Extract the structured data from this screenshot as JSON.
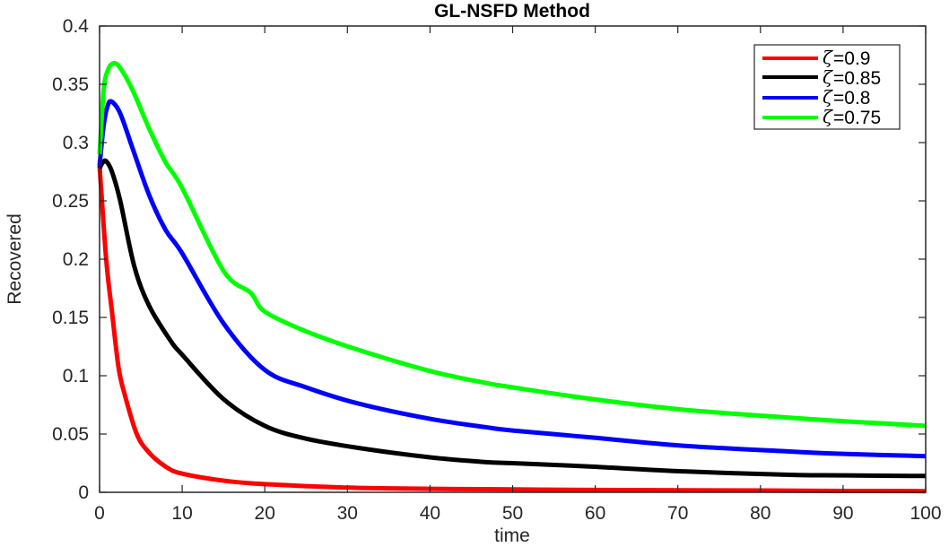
{
  "chart_data": {
    "type": "line",
    "title": "GL-NSFD Method",
    "xlabel": "time",
    "ylabel": "Recovered",
    "xlim": [
      0,
      100
    ],
    "ylim": [
      0,
      0.4
    ],
    "xticks": [
      0,
      10,
      20,
      30,
      40,
      50,
      60,
      70,
      80,
      90,
      100
    ],
    "xtick_labels": [
      "0",
      "10",
      "20",
      "30",
      "40",
      "50",
      "60",
      "70",
      "80",
      "90",
      "100"
    ],
    "yticks": [
      0,
      0.05,
      0.1,
      0.15,
      0.2,
      0.25,
      0.3,
      0.35,
      0.4
    ],
    "ytick_labels": [
      "0",
      "0.05",
      "0.1",
      "0.15",
      "0.2",
      "0.25",
      "0.3",
      "0.35",
      "0.4"
    ],
    "grid": false,
    "legend_position": "upper right",
    "series": [
      {
        "name": "ζ=0.9",
        "symbol": "ζ",
        "value_label": "=0.9",
        "color": "#ff0000",
        "x": [
          0,
          0.8,
          1.5,
          2.3,
          3,
          4.5,
          6,
          8,
          10,
          15,
          20,
          30,
          40,
          50,
          60,
          70,
          80,
          90,
          100
        ],
        "y": [
          0.28,
          0.2,
          0.155,
          0.107,
          0.085,
          0.05,
          0.034,
          0.022,
          0.016,
          0.01,
          0.007,
          0.004,
          0.003,
          0.0025,
          0.002,
          0.0017,
          0.0015,
          0.0012,
          0.001
        ]
      },
      {
        "name": "ζ=0.85",
        "symbol": "ζ",
        "value_label": "=0.85",
        "color": "#000000",
        "x": [
          0,
          0.4,
          0.8,
          1.5,
          2.5,
          4.2,
          6,
          8.6,
          10,
          15,
          20,
          25,
          31.4,
          40,
          46.6,
          50,
          59.6,
          70.5,
          83.5,
          90,
          100
        ],
        "y": [
          0.278,
          0.283,
          0.284,
          0.275,
          0.25,
          0.194,
          0.16,
          0.13,
          0.118,
          0.08,
          0.057,
          0.046,
          0.038,
          0.03,
          0.026,
          0.025,
          0.022,
          0.018,
          0.015,
          0.0145,
          0.014
        ]
      },
      {
        "name": "ζ=0.8",
        "symbol": "ζ",
        "value_label": "=0.8",
        "color": "#0000ff",
        "x": [
          0,
          0.5,
          1,
          1.5,
          2.5,
          4,
          6,
          8,
          10,
          15,
          20,
          25,
          31.4,
          40,
          46.6,
          50,
          59.6,
          70.5,
          83.5,
          90,
          100
        ],
        "y": [
          0.28,
          0.315,
          0.332,
          0.335,
          0.325,
          0.295,
          0.255,
          0.225,
          0.205,
          0.145,
          0.105,
          0.09,
          0.076,
          0.063,
          0.056,
          0.053,
          0.047,
          0.04,
          0.035,
          0.033,
          0.031
        ]
      },
      {
        "name": "ζ=0.75",
        "symbol": "ζ",
        "value_label": "=0.75",
        "color": "#00ff00",
        "x": [
          0,
          0.5,
          1,
          1.7,
          2.5,
          4,
          6,
          8,
          10,
          15,
          18.3,
          20,
          25,
          31.4,
          40,
          46.6,
          50,
          59.6,
          70.5,
          83.5,
          90,
          100
        ],
        "y": [
          0.29,
          0.345,
          0.362,
          0.368,
          0.364,
          0.345,
          0.312,
          0.283,
          0.261,
          0.19,
          0.171,
          0.155,
          0.138,
          0.122,
          0.104,
          0.094,
          0.09,
          0.08,
          0.071,
          0.064,
          0.061,
          0.057
        ]
      }
    ]
  }
}
